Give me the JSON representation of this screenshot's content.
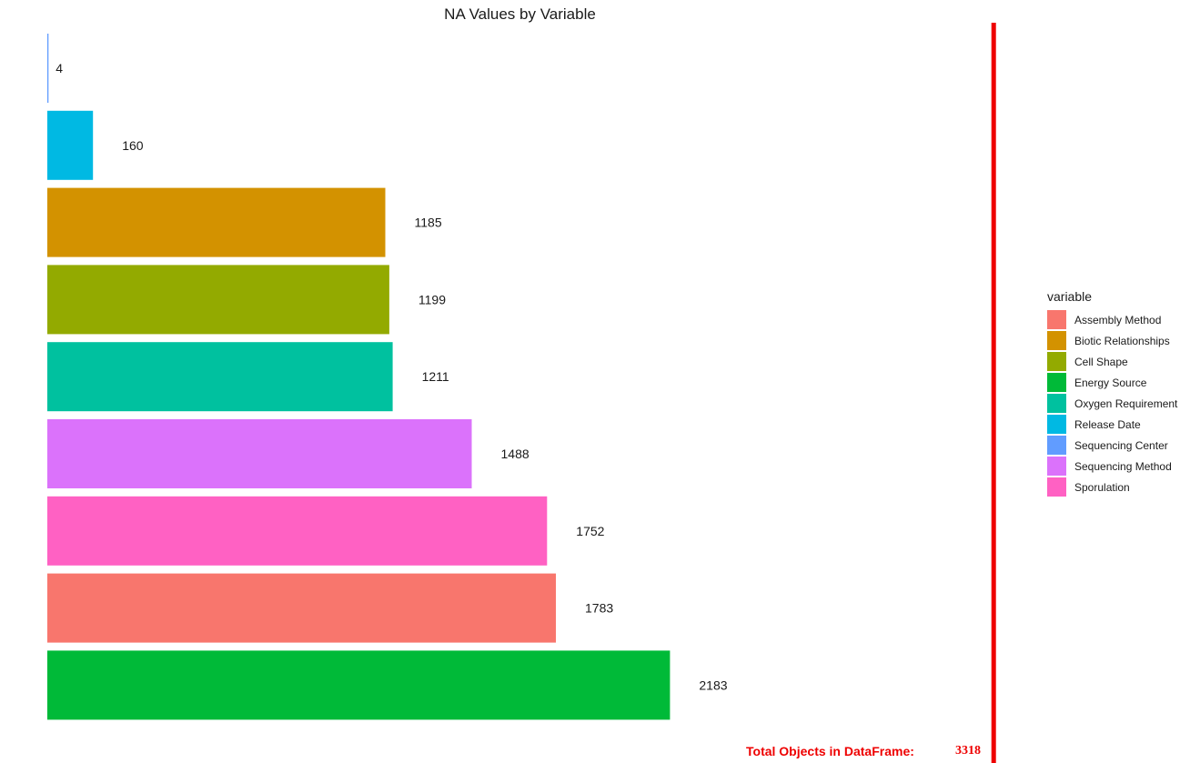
{
  "chart_data": {
    "type": "bar",
    "orientation": "horizontal",
    "title": "NA Values by Variable",
    "xlabel": "",
    "ylabel": "",
    "xlim": [
      0,
      3400
    ],
    "grid": false,
    "legend_title": "variable",
    "legend_position": "right",
    "categories": [
      "Sequencing Center",
      "Release Date",
      "Biotic Relationships",
      "Cell Shape",
      "Oxygen Requirement",
      "Sequencing Method",
      "Sporulation",
      "Assembly Method",
      "Energy Source"
    ],
    "values": [
      4,
      160,
      1185,
      1199,
      1211,
      1488,
      1752,
      1783,
      2183
    ],
    "colors": {
      "Assembly Method": "#F8766D",
      "Biotic Relationships": "#D39200",
      "Cell Shape": "#93AA00",
      "Energy Source": "#00BA38",
      "Oxygen Requirement": "#00C19F",
      "Release Date": "#00B9E3",
      "Sequencing Center": "#619CFF",
      "Sequencing Method": "#DB72FB",
      "Sporulation": "#FF61C3"
    },
    "legend_entries": [
      "Assembly Method",
      "Biotic Relationships",
      "Cell Shape",
      "Energy Source",
      "Oxygen Requirement",
      "Release Date",
      "Sequencing Center",
      "Sequencing Method",
      "Sporulation"
    ],
    "reference_line": {
      "value": 3318,
      "color": "#EE0000",
      "label": "Total Objects in DataFrame:",
      "value_label": "3318"
    }
  }
}
